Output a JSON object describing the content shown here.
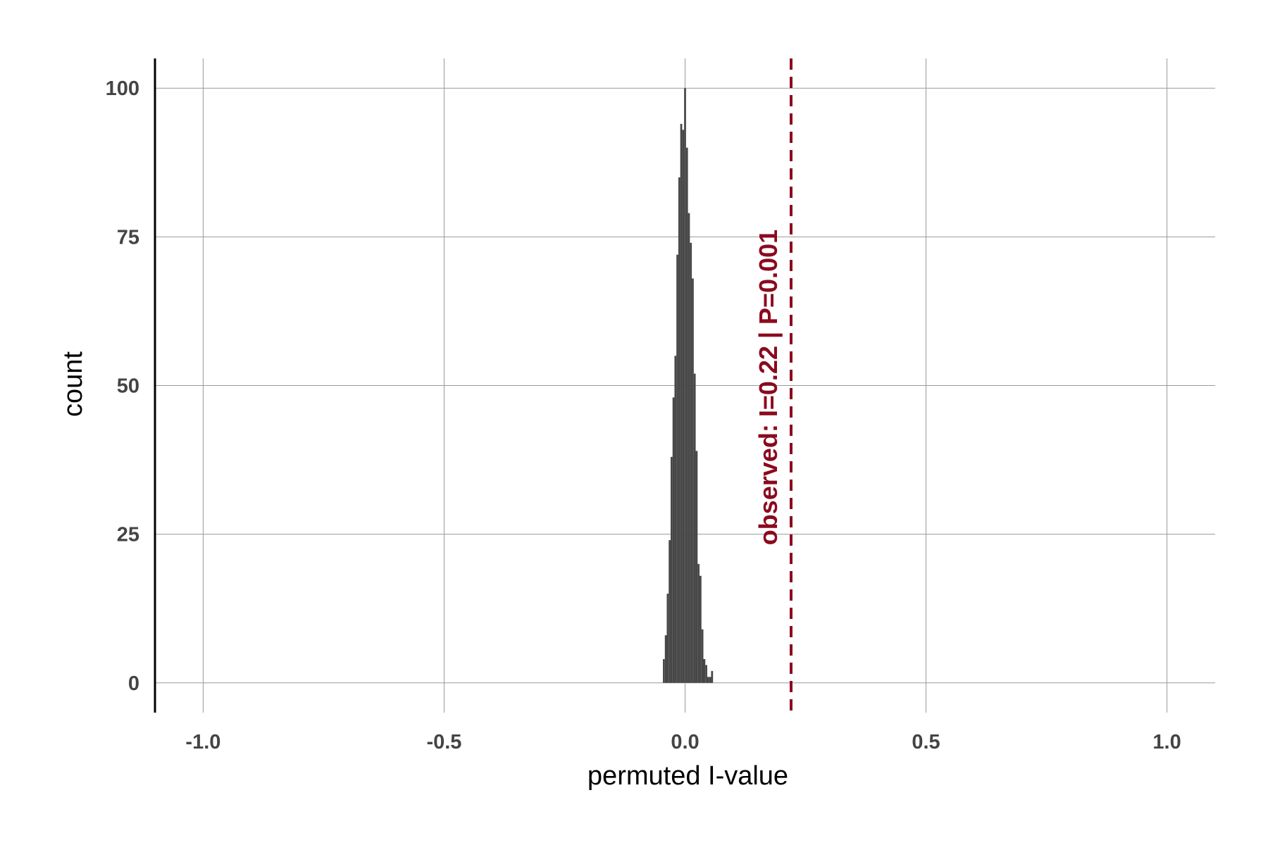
{
  "chart_data": {
    "type": "bar",
    "subtype": "histogram",
    "xlabel": "permuted I-value",
    "ylabel": "count",
    "xlim": [
      -1.1,
      1.1
    ],
    "ylim": [
      -5,
      105
    ],
    "xticks": [
      -1.0,
      -0.5,
      0.0,
      0.5,
      1.0
    ],
    "xtick_labels": [
      "-1.0",
      "-0.5",
      "0.0",
      "0.5",
      "1.0"
    ],
    "yticks": [
      0,
      25,
      50,
      75,
      100
    ],
    "ytick_labels": [
      "0",
      "25",
      "50",
      "75",
      "100"
    ],
    "grid": true,
    "bar_color": "#474747",
    "bin_width": 0.004,
    "bins": [
      {
        "x": -0.044,
        "count": 4
      },
      {
        "x": -0.04,
        "count": 8
      },
      {
        "x": -0.036,
        "count": 15
      },
      {
        "x": -0.032,
        "count": 24
      },
      {
        "x": -0.028,
        "count": 38
      },
      {
        "x": -0.024,
        "count": 48
      },
      {
        "x": -0.02,
        "count": 55
      },
      {
        "x": -0.016,
        "count": 72
      },
      {
        "x": -0.012,
        "count": 85
      },
      {
        "x": -0.008,
        "count": 94
      },
      {
        "x": -0.004,
        "count": 93
      },
      {
        "x": 0.0,
        "count": 100
      },
      {
        "x": 0.004,
        "count": 90
      },
      {
        "x": 0.008,
        "count": 79
      },
      {
        "x": 0.012,
        "count": 74
      },
      {
        "x": 0.016,
        "count": 68
      },
      {
        "x": 0.02,
        "count": 52
      },
      {
        "x": 0.024,
        "count": 39
      },
      {
        "x": 0.028,
        "count": 20
      },
      {
        "x": 0.032,
        "count": 18
      },
      {
        "x": 0.036,
        "count": 9
      },
      {
        "x": 0.04,
        "count": 4
      },
      {
        "x": 0.044,
        "count": 3
      },
      {
        "x": 0.048,
        "count": 1
      },
      {
        "x": 0.052,
        "count": 1
      },
      {
        "x": 0.056,
        "count": 2
      }
    ],
    "observed": {
      "value": 0.22,
      "label": "observed: I=0.22 | P=0.001",
      "color": "#8B0A1E"
    }
  }
}
